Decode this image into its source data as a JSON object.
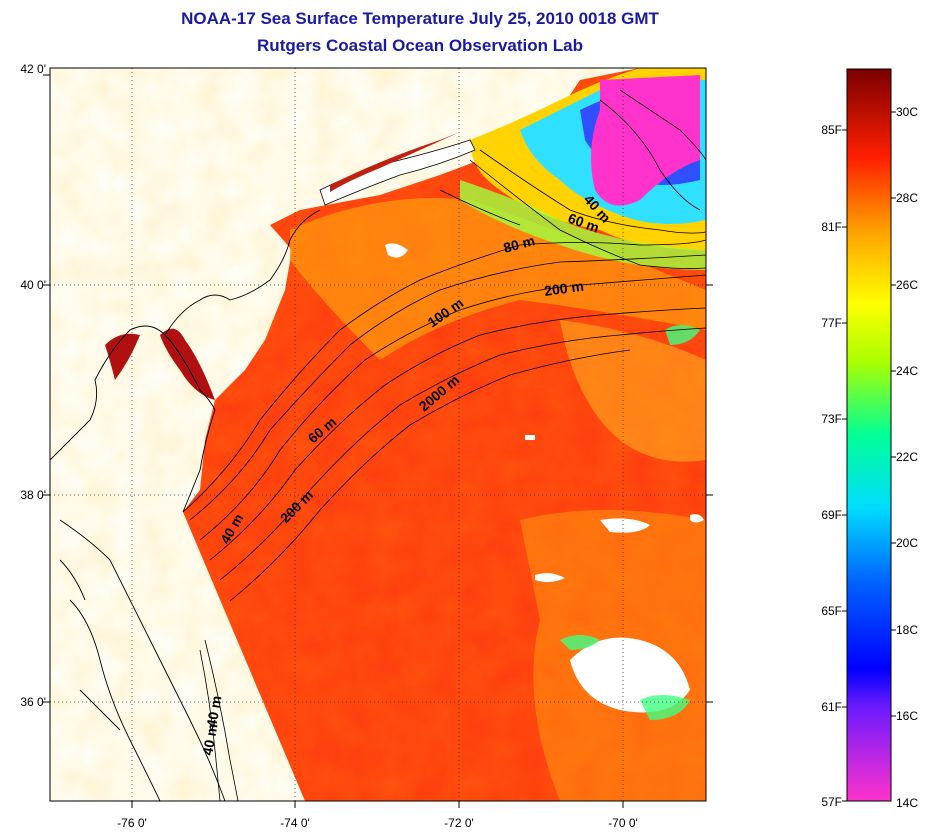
{
  "title": {
    "line1": "NOAA-17 Sea Surface Temperature July 25, 2010 0018 GMT",
    "line2": "Rutgers Coastal Ocean Observation Lab"
  },
  "axes": {
    "lat_labels": [
      "42 0'",
      "40 0'",
      "38 0'",
      "36 0'"
    ],
    "lon_labels": [
      "-76 0'",
      "-74 0'",
      "-72 0'",
      "-70 0'"
    ]
  },
  "isobaths": [
    {
      "label": "40 m"
    },
    {
      "label": "60 m"
    },
    {
      "label": "80 m"
    },
    {
      "label": "100 m"
    },
    {
      "label": "200 m"
    },
    {
      "label": "2000 m"
    },
    {
      "label": "60 m"
    },
    {
      "label": "40 m"
    },
    {
      "label": "200 m"
    },
    {
      "label": "40 m"
    },
    {
      "label": "40 m"
    }
  ],
  "colorbar": {
    "fahrenheit": [
      "85F",
      "81F",
      "77F",
      "73F",
      "69F",
      "65F",
      "61F",
      "57F"
    ],
    "celsius": [
      "30C",
      "28C",
      "26C",
      "24C",
      "22C",
      "20C",
      "18C",
      "16C",
      "14C"
    ],
    "colors": [
      "#ff33cc",
      "#0000ff",
      "#00c8ff",
      "#00ff96",
      "#ffff00",
      "#ffa000",
      "#ff0000",
      "#7a0000"
    ]
  }
}
